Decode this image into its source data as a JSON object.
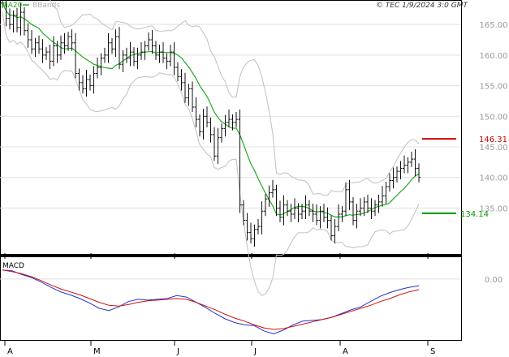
{
  "header": {
    "legend_ma": "MA20",
    "legend_bb": "BBands",
    "copyright": "© TEC 1/9/2024 3:0 GMT"
  },
  "macd_label": "MACD",
  "colors": {
    "price": "#111111",
    "ma": "#22aa22",
    "bbands": "#c0c0c0",
    "grid": "#e0e0e0",
    "resistance": "#cc0000",
    "support": "#009900",
    "macd": "#2233cc",
    "signal": "#cc1111"
  },
  "levels": {
    "resistance_label": "146.31",
    "support_label": "134.14"
  },
  "chart_data": [
    {
      "type": "ohlc",
      "title": "",
      "x_ticks": [
        "A",
        "M",
        "J",
        "J",
        "A",
        "S"
      ],
      "y_ticks": [
        "165.00",
        "160.00",
        "155.00",
        "150.00",
        "145.00",
        "140.00",
        "135.00"
      ],
      "ylim": [
        127.5,
        169
      ],
      "grid": true,
      "levels": {
        "resistance": 146.31,
        "support": 134.14
      },
      "close": [
        168.5,
        166.0,
        165.0,
        166.5,
        164.5,
        167.0,
        164.0,
        162.5,
        161.0,
        162.0,
        161.0,
        160.0,
        160.5,
        159.0,
        161.5,
        160.0,
        162.0,
        161.5,
        163.0,
        162.0,
        157.0,
        155.5,
        154.5,
        156.0,
        155.0,
        157.0,
        158.0,
        159.5,
        160.0,
        162.0,
        161.0,
        163.0,
        158.5,
        160.0,
        159.5,
        160.5,
        159.0,
        160.0,
        160.5,
        161.5,
        162.5,
        161.5,
        160.0,
        160.5,
        159.5,
        159.0,
        160.5,
        158.0,
        156.5,
        155.5,
        153.0,
        154.5,
        151.5,
        149.5,
        147.5,
        150.0,
        149.0,
        147.0,
        143.5,
        146.5,
        148.0,
        149.0,
        149.5,
        149.0,
        149.5,
        135.5,
        133.0,
        131.0,
        130.0,
        131.5,
        132.0,
        134.5,
        136.5,
        137.5,
        138.0,
        135.0,
        133.5,
        135.5,
        134.5,
        134.0,
        135.0,
        134.0,
        134.5,
        135.5,
        134.5,
        134.0,
        133.0,
        134.5,
        133.5,
        133.0,
        130.5,
        132.0,
        134.0,
        134.5,
        138.0,
        136.0,
        133.0,
        134.5,
        135.0,
        136.0,
        135.0,
        134.5,
        135.5,
        136.0,
        137.0,
        138.5,
        139.5,
        140.0,
        141.0,
        141.5,
        142.0,
        142.5,
        143.0,
        141.5,
        140.0
      ]
    },
    {
      "type": "line",
      "title": "MACD",
      "y_ticks": [
        "0.00"
      ],
      "ylim": [
        -4,
        1.4
      ],
      "series": [
        {
          "name": "",
          "values": [
            0.6,
            0.55,
            0.3,
            0.1,
            -0.2,
            -0.55,
            -0.85,
            -1.05,
            -1.3,
            -1.6,
            -1.95,
            -2.1,
            -1.85,
            -1.5,
            -1.35,
            -1.4,
            -1.35,
            -1.3,
            -1.1,
            -1.2,
            -1.55,
            -1.9,
            -2.3,
            -2.65,
            -2.9,
            -3.05,
            -3.1,
            -3.45,
            -3.65,
            -3.4,
            -3.05,
            -2.8,
            -2.75,
            -2.7,
            -2.55,
            -2.3,
            -2.05,
            -1.85,
            -1.5,
            -1.15,
            -0.9,
            -0.7,
            -0.55,
            -0.45
          ]
        },
        {
          "name": "",
          "values": [
            0.6,
            0.5,
            0.35,
            0.15,
            -0.1,
            -0.4,
            -0.65,
            -0.85,
            -1.05,
            -1.3,
            -1.55,
            -1.75,
            -1.8,
            -1.7,
            -1.55,
            -1.45,
            -1.4,
            -1.35,
            -1.3,
            -1.35,
            -1.55,
            -1.8,
            -2.05,
            -2.35,
            -2.6,
            -2.8,
            -3.05,
            -3.25,
            -3.35,
            -3.3,
            -3.15,
            -3.0,
            -2.85,
            -2.7,
            -2.55,
            -2.35,
            -2.15,
            -1.95,
            -1.75,
            -1.5,
            -1.3,
            -1.05,
            -0.85,
            -0.7
          ]
        }
      ]
    }
  ]
}
